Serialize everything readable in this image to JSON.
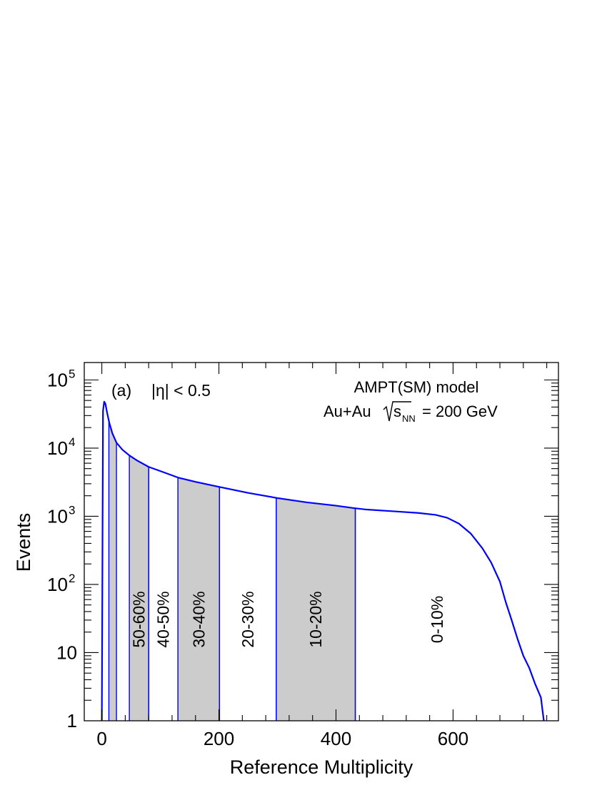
{
  "chart_data": {
    "type": "area",
    "xlabel": "Reference Multiplicity",
    "ylabel": "Events",
    "xlim": [
      -30,
      780
    ],
    "ylim": [
      1,
      180000
    ],
    "y_scale": "log",
    "x_ticks": [
      {
        "value": 0,
        "label": "0"
      },
      {
        "value": 200,
        "label": "200"
      },
      {
        "value": 400,
        "label": "400"
      },
      {
        "value": 600,
        "label": "600"
      }
    ],
    "y_ticks": [
      {
        "value": 1,
        "label": "1"
      },
      {
        "value": 10,
        "label": "10"
      },
      {
        "value": 100,
        "label": "10",
        "sup": "2"
      },
      {
        "value": 1000,
        "label": "10",
        "sup": "3"
      },
      {
        "value": 10000,
        "label": "10",
        "sup": "4"
      },
      {
        "value": 100000,
        "label": "10",
        "sup": "5"
      }
    ],
    "annotations": {
      "panel": "(a)",
      "eta_cut": "|η| < 0.5",
      "model": "AMPT(SM) model",
      "system_prefix": "Au+Au",
      "system_s": "s",
      "system_sub": "NN",
      "system_energy": "= 200 GeV"
    },
    "series": [
      {
        "color": "#0000ff",
        "points": [
          [
            0,
            1
          ],
          [
            2,
            35000
          ],
          [
            4,
            48000
          ],
          [
            6,
            45000
          ],
          [
            9,
            33000
          ],
          [
            13,
            23000
          ],
          [
            18,
            16500
          ],
          [
            25,
            12000
          ],
          [
            35,
            9500
          ],
          [
            47,
            7800
          ],
          [
            60,
            6600
          ],
          [
            80,
            5300
          ],
          [
            100,
            4600
          ],
          [
            130,
            3700
          ],
          [
            160,
            3200
          ],
          [
            200,
            2700
          ],
          [
            250,
            2200
          ],
          [
            300,
            1850
          ],
          [
            350,
            1600
          ],
          [
            400,
            1430
          ],
          [
            430,
            1320
          ],
          [
            450,
            1260
          ],
          [
            500,
            1180
          ],
          [
            540,
            1120
          ],
          [
            570,
            1050
          ],
          [
            590,
            950
          ],
          [
            610,
            780
          ],
          [
            630,
            560
          ],
          [
            650,
            340
          ],
          [
            665,
            210
          ],
          [
            680,
            110
          ],
          [
            690,
            55
          ],
          [
            700,
            30
          ],
          [
            710,
            16
          ],
          [
            720,
            9
          ],
          [
            730,
            6
          ],
          [
            740,
            3.5
          ],
          [
            750,
            2.2
          ],
          [
            755,
            1
          ]
        ]
      }
    ],
    "bins": [
      {
        "label": "",
        "x0": 12,
        "x1": 25,
        "shaded": true
      },
      {
        "label": "50-60%",
        "x0": 47,
        "x1": 80,
        "shaded": true
      },
      {
        "label": "40-50%",
        "x0": 80,
        "x1": 130,
        "shaded": false
      },
      {
        "label": "30-40%",
        "x0": 130,
        "x1": 201,
        "shaded": true
      },
      {
        "label": "20-30%",
        "x0": 201,
        "x1": 298,
        "shaded": false
      },
      {
        "label": "10-20%",
        "x0": 298,
        "x1": 433,
        "shaded": true
      },
      {
        "label": "0-10%",
        "x0": 433,
        "x1": 760,
        "shaded": false
      }
    ],
    "grid": false,
    "legend": "none"
  }
}
